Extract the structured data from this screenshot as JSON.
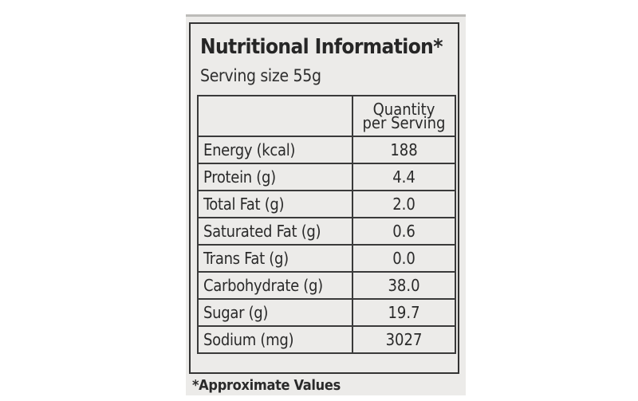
{
  "label": {
    "title": "Nutritional Information*",
    "serving_size": "Serving size 55g",
    "column_header_line1": "Quantity",
    "column_header_line2": "per Serving",
    "rows": [
      {
        "name": "Energy (kcal)",
        "value": "188"
      },
      {
        "name": "Protein (g)",
        "value": "4.4"
      },
      {
        "name": "Total Fat (g)",
        "value": "2.0"
      },
      {
        "name": "Saturated Fat (g)",
        "value": "0.6"
      },
      {
        "name": "Trans Fat (g)",
        "value": "0.0"
      },
      {
        "name": "Carbohydrate (g)",
        "value": "38.0"
      },
      {
        "name": "Sugar (g)",
        "value": "19.7"
      },
      {
        "name": "Sodium (mg)",
        "value": "3027"
      }
    ],
    "footnote": "*Approximate Values"
  }
}
